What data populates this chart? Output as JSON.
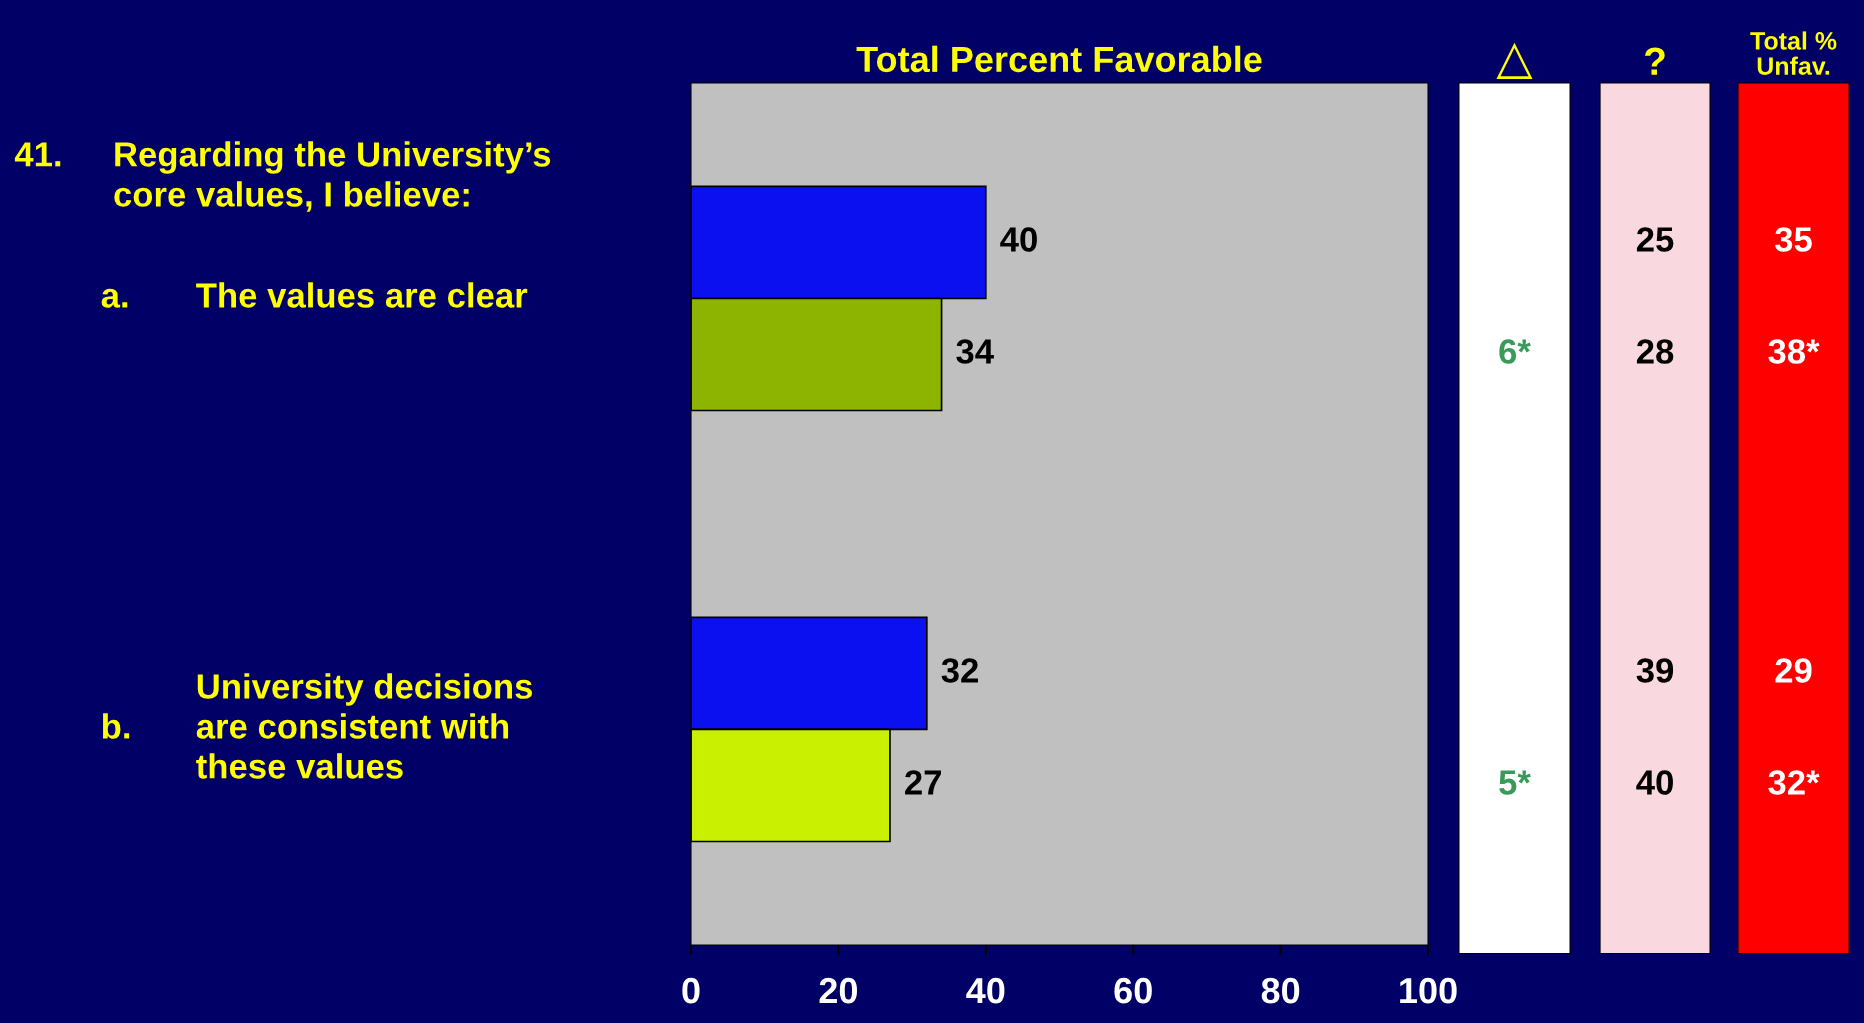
{
  "chart_data": [
    {
      "type": "bar",
      "orientation": "horizontal",
      "title": "Total Percent Favorable",
      "subtitle": "41.\tRegarding the University’s\ncore values, I believe:",
      "categories": [
        "a.\tThe values are clear",
        "b.\tUniversity decisions\nare consistent with\nthese values"
      ],
      "series": [
        {
          "color": "#0a10f0",
          "values": [
            40,
            32
          ]
        },
        {
          "colors": [
            "#8cb400",
            "#c8f000"
          ],
          "values": [
            34,
            27
          ]
        }
      ],
      "xlim": [
        0,
        100
      ],
      "xticks": [
        0,
        20,
        40,
        60,
        80,
        100
      ],
      "data_labels": true,
      "grid": false,
      "legend": false
    },
    {
      "type": "other",
      "title": "△",
      "values": [
        null,
        6,
        null,
        5
      ],
      "value_labels": [
        null,
        "6*",
        null,
        "5*"
      ],
      "color": "#3a9a5a"
    },
    {
      "type": "other",
      "title": "?",
      "values": [
        25,
        28,
        39,
        40
      ],
      "value_labels": [
        "25",
        "28",
        "39",
        "40"
      ],
      "color": "#000000"
    },
    {
      "type": "other",
      "title": "Total %\nUnfav.",
      "values": [
        35,
        38,
        29,
        32
      ],
      "value_labels": [
        "35",
        "38*",
        "29",
        "32*"
      ],
      "color": "#ffffff"
    }
  ]
}
